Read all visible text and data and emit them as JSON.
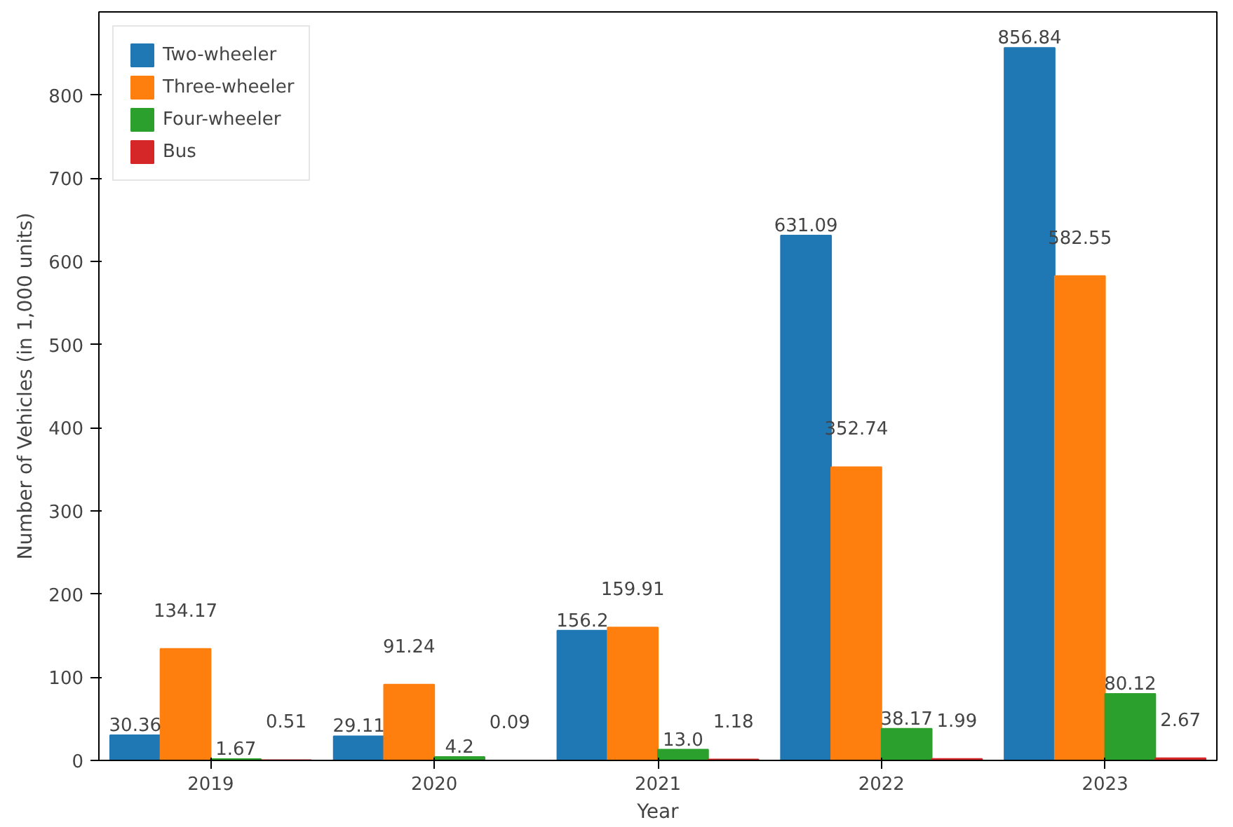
{
  "chart_data": {
    "type": "bar",
    "xlabel": "Year",
    "ylabel": "Number of Vehicles (in 1,000 units)",
    "categories": [
      "2019",
      "2020",
      "2021",
      "2022",
      "2023"
    ],
    "series": [
      {
        "name": "Two-wheeler",
        "color": "#1f77b4",
        "values": [
          30.36,
          29.11,
          156.2,
          631.09,
          856.84
        ],
        "value_labels": [
          "30.36",
          "29.11",
          "156.2",
          "631.09",
          "856.84"
        ]
      },
      {
        "name": "Three-wheeler",
        "color": "#ff7f0e",
        "values": [
          134.17,
          91.24,
          159.91,
          352.74,
          582.55
        ],
        "value_labels": [
          "134.17",
          "91.24",
          "159.91",
          "352.74",
          "582.55"
        ]
      },
      {
        "name": "Four-wheeler",
        "color": "#2ca02c",
        "values": [
          1.67,
          4.2,
          13.0,
          38.17,
          80.12
        ],
        "value_labels": [
          "1.67",
          "4.2",
          "13.0",
          "38.17",
          "80.12"
        ]
      },
      {
        "name": "Bus",
        "color": "#d62728",
        "values": [
          0.51,
          0.09,
          1.18,
          1.99,
          2.67
        ],
        "value_labels": [
          "0.51",
          "0.09",
          "1.18",
          "1.99",
          "2.67"
        ]
      }
    ],
    "ylim": [
      0,
      900
    ],
    "yticks": [
      0,
      100,
      200,
      300,
      400,
      500,
      600,
      700,
      800
    ],
    "legend": "top left",
    "grid": false
  }
}
